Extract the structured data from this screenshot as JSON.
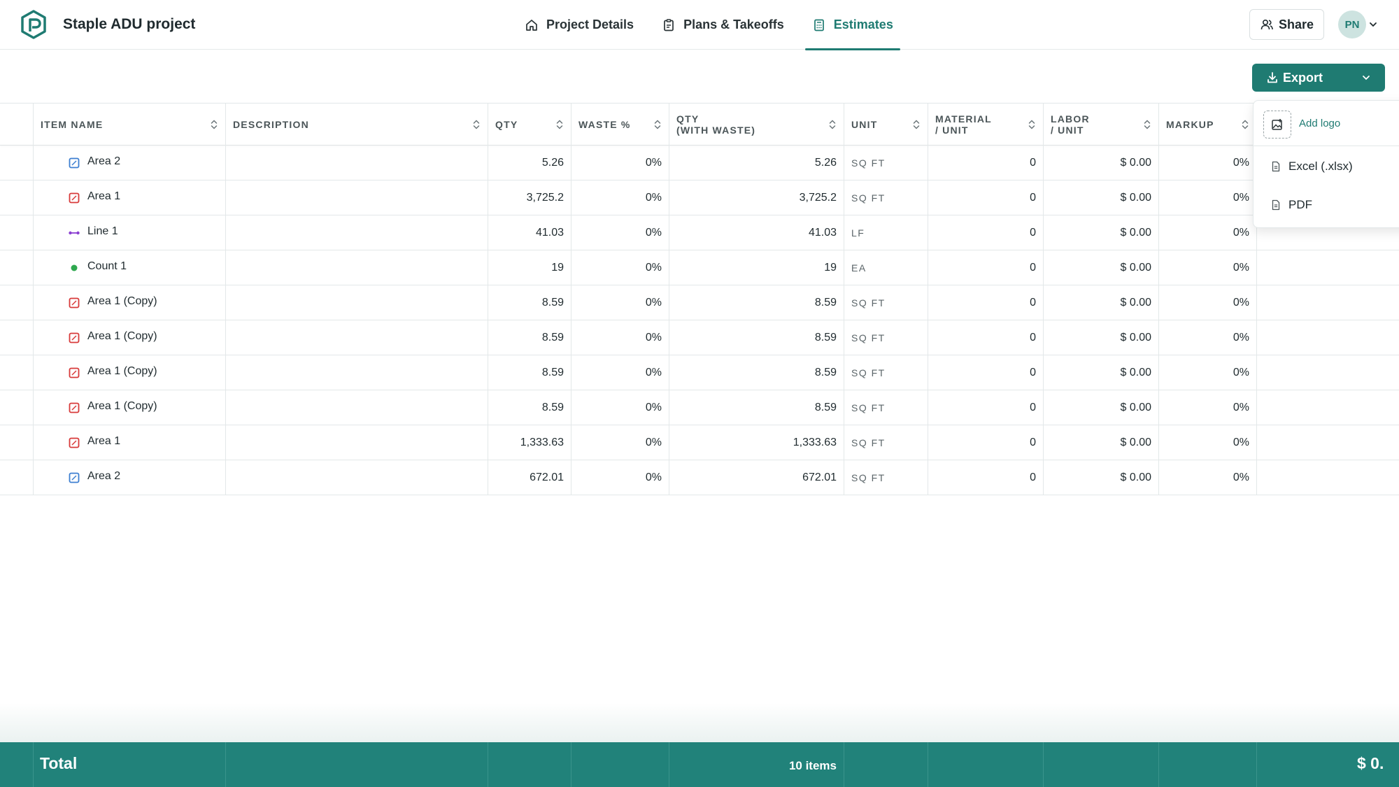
{
  "header": {
    "project_title": "Staple ADU project",
    "tabs": [
      {
        "label": "Project Details",
        "icon": "home-icon"
      },
      {
        "label": "Plans & Takeoffs",
        "icon": "clipboard-icon"
      },
      {
        "label": "Estimates",
        "icon": "calculator-icon",
        "active": true
      }
    ],
    "share_label": "Share",
    "avatar_initials": "PN"
  },
  "toolbar": {
    "export_label": "Export"
  },
  "export_menu": {
    "add_logo_label": "Add logo",
    "items": [
      {
        "label": "Excel (.xlsx)",
        "icon": "file-icon"
      },
      {
        "label": "PDF",
        "icon": "file-icon"
      }
    ]
  },
  "table": {
    "columns": [
      "ITEM NAME",
      "DESCRIPTION",
      "QTY",
      "WASTE %",
      "QTY\n(WITH WASTE)",
      "UNIT",
      "MATERIAL\n/ UNIT",
      "LABOR\n/ UNIT",
      "MARKUP"
    ],
    "rows": [
      {
        "name": "Area 2",
        "icon": "area-blue-icon",
        "qty": "5.26",
        "waste": "0%",
        "qty_waste": "5.26",
        "unit": "SQ FT",
        "material": "0",
        "labor": "$ 0.00",
        "markup": "0%"
      },
      {
        "name": "Area 1",
        "icon": "area-red-icon",
        "qty": "3,725.2",
        "waste": "0%",
        "qty_waste": "3,725.2",
        "unit": "SQ FT",
        "material": "0",
        "labor": "$ 0.00",
        "markup": "0%"
      },
      {
        "name": "Line 1",
        "icon": "line-purple-icon",
        "qty": "41.03",
        "waste": "0%",
        "qty_waste": "41.03",
        "unit": "LF",
        "material": "0",
        "labor": "$ 0.00",
        "markup": "0%"
      },
      {
        "name": "Count 1",
        "icon": "count-green-icon",
        "qty": "19",
        "waste": "0%",
        "qty_waste": "19",
        "unit": "EA",
        "material": "0",
        "labor": "$ 0.00",
        "markup": "0%"
      },
      {
        "name": "Area 1 (Copy)",
        "icon": "area-red-icon",
        "qty": "8.59",
        "waste": "0%",
        "qty_waste": "8.59",
        "unit": "SQ FT",
        "material": "0",
        "labor": "$ 0.00",
        "markup": "0%"
      },
      {
        "name": "Area 1 (Copy)",
        "icon": "area-red-icon",
        "qty": "8.59",
        "waste": "0%",
        "qty_waste": "8.59",
        "unit": "SQ FT",
        "material": "0",
        "labor": "$ 0.00",
        "markup": "0%"
      },
      {
        "name": "Area 1 (Copy)",
        "icon": "area-red-icon",
        "qty": "8.59",
        "waste": "0%",
        "qty_waste": "8.59",
        "unit": "SQ FT",
        "material": "0",
        "labor": "$ 0.00",
        "markup": "0%"
      },
      {
        "name": "Area 1 (Copy)",
        "icon": "area-red-icon",
        "qty": "8.59",
        "waste": "0%",
        "qty_waste": "8.59",
        "unit": "SQ FT",
        "material": "0",
        "labor": "$ 0.00",
        "markup": "0%"
      },
      {
        "name": "Area 1",
        "icon": "area-red-icon",
        "qty": "1,333.63",
        "waste": "0%",
        "qty_waste": "1,333.63",
        "unit": "SQ FT",
        "material": "0",
        "labor": "$ 0.00",
        "markup": "0%"
      },
      {
        "name": "Area 2",
        "icon": "area-blue-icon",
        "qty": "672.01",
        "waste": "0%",
        "qty_waste": "672.01",
        "unit": "SQ FT",
        "material": "0",
        "labor": "$ 0.00",
        "markup": "0%"
      }
    ]
  },
  "footer": {
    "total_label": "Total",
    "items_count": "10 items",
    "amount": "$ 0."
  },
  "colors": {
    "brand": "#1f7b72",
    "footer": "#21827a",
    "area_blue": "#3d7fd1",
    "area_red": "#d83a3a",
    "line_purple": "#8b3fd1",
    "count_green": "#2fa84f"
  }
}
